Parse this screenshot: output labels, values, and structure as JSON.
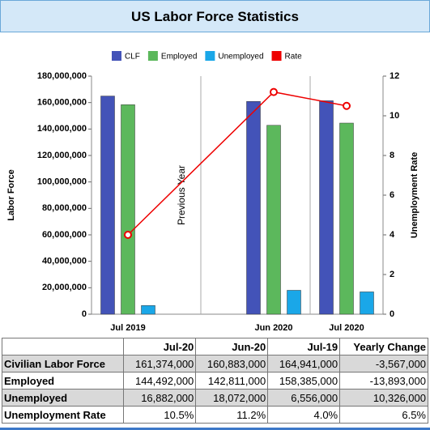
{
  "chart_data": {
    "type": "bar",
    "title": "US Labor Force Statistics",
    "categories": [
      "Jul 2019",
      "Jun 2020",
      "Jul 2020"
    ],
    "annotation": "Previous Year",
    "ylabel": "Labor Force",
    "y2label": "Unemployment Rate",
    "ylim": [
      0,
      180000000
    ],
    "yticks": [
      {
        "value": 0,
        "label": "0"
      },
      {
        "value": 20000000,
        "label": "20,000,000"
      },
      {
        "value": 40000000,
        "label": "40,000,000"
      },
      {
        "value": 60000000,
        "label": "60,000,000"
      },
      {
        "value": 80000000,
        "label": "80,000,000"
      },
      {
        "value": 100000000,
        "label": "100,000,000"
      },
      {
        "value": 120000000,
        "label": "120,000,000"
      },
      {
        "value": 140000000,
        "label": "140,000,000"
      },
      {
        "value": 160000000,
        "label": "160,000,000"
      },
      {
        "value": 180000000,
        "label": "180,000,000"
      }
    ],
    "y2lim": [
      0,
      12
    ],
    "y2ticks": [
      0,
      2,
      4,
      6,
      8,
      10,
      12
    ],
    "series": [
      {
        "name": "CLF",
        "color": "#4353b8",
        "values": [
          164941000,
          160883000,
          161374000
        ]
      },
      {
        "name": "Employed",
        "color": "#5cb85c",
        "values": [
          158385000,
          142811000,
          144492000
        ]
      },
      {
        "name": "Unemployed",
        "color": "#1aa7e8",
        "values": [
          6556000,
          18072000,
          16882000
        ]
      },
      {
        "name": "Rate",
        "color": "#ee0000",
        "type": "line",
        "axis": "y2",
        "values": [
          4.0,
          11.2,
          10.5
        ]
      }
    ]
  },
  "table": {
    "columns": [
      "Jul-20",
      "Jun-20",
      "Jul-19",
      "Yearly Change"
    ],
    "rows": [
      [
        "Civilian Labor Force",
        "161,374,000",
        "160,883,000",
        "164,941,000",
        "-3,567,000"
      ],
      [
        "Employed",
        "144,492,000",
        "142,811,000",
        "158,385,000",
        "-13,893,000"
      ],
      [
        "Unemployed",
        "16,882,000",
        "18,072,000",
        "6,556,000",
        "10,326,000"
      ],
      [
        "Unemployment Rate",
        "10.5%",
        "11.2%",
        "4.0%",
        "6.5%"
      ]
    ]
  }
}
